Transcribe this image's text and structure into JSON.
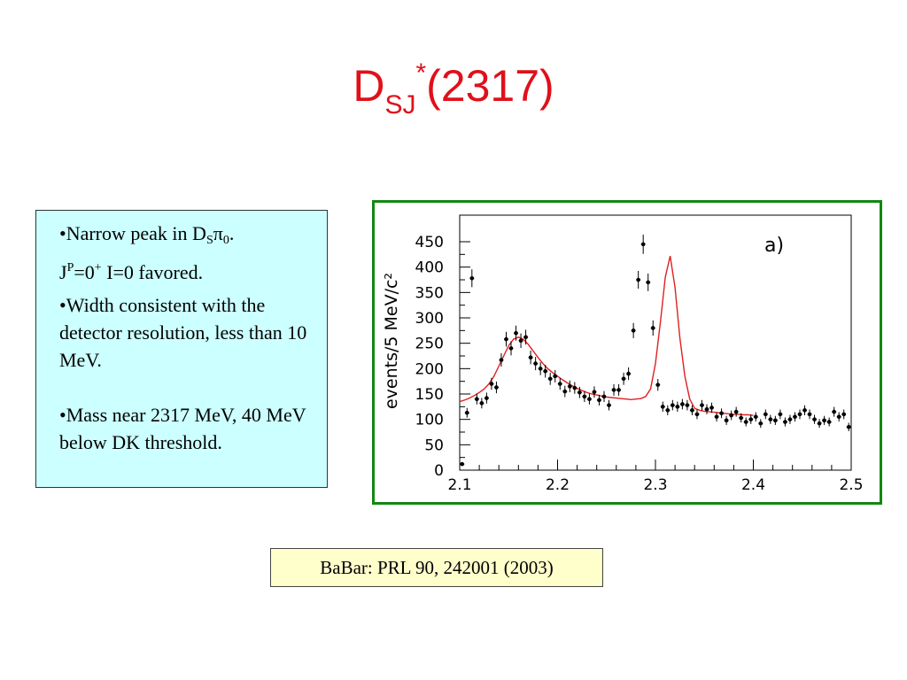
{
  "title": {
    "main": "D",
    "sub": "SJ",
    "sup": "*",
    "rest": "(2317)"
  },
  "bullets": {
    "b1_l1_pre": "•Narrow peak in D",
    "b1_l1_sub1": "S",
    "b1_l1_pi": "π",
    "b1_l1_sub2": "0",
    "b1_l1_end": ".",
    "b1_l2_j": "J",
    "b1_l2_p": "P",
    "b1_l2_eq": "=0",
    "b1_l2_plus": "+",
    "b1_l2_rest": " I=0 favored.",
    "b2": "•Width consistent with the detector resolution, less than 10 MeV.",
    "b3": "•Mass near 2317 MeV, 40 MeV below DK threshold."
  },
  "citation": "BaBar: PRL 90, 242001 (2003)",
  "colors": {
    "title": "#e0101a",
    "bullet_bg": "#ccffff",
    "chart_frame": "#118811",
    "fit_line": "#e02020",
    "citation_bg": "#ffffcc"
  },
  "chart_data": {
    "type": "scatter",
    "ylabel": "events/5 MeV/c²",
    "xlabel": "",
    "panel_label": "a)",
    "xlim": [
      2.1,
      2.5
    ],
    "ylim": [
      0,
      450
    ],
    "xticks": [
      {
        "v": 2.1,
        "label": "2.1"
      },
      {
        "v": 2.2,
        "label": "2.2"
      },
      {
        "v": 2.3,
        "label": "2.3"
      },
      {
        "v": 2.4,
        "label": "2.4"
      },
      {
        "v": 2.5,
        "label": "2.5"
      }
    ],
    "yticks": [
      {
        "v": 0,
        "label": "0"
      },
      {
        "v": 50,
        "label": "50"
      },
      {
        "v": 100,
        "label": "100"
      },
      {
        "v": 150,
        "label": "150"
      },
      {
        "v": 200,
        "label": "200"
      },
      {
        "v": 250,
        "label": "250"
      },
      {
        "v": 300,
        "label": "300"
      },
      {
        "v": 350,
        "label": "350"
      },
      {
        "v": 400,
        "label": "400"
      },
      {
        "v": 450,
        "label": "450"
      }
    ],
    "grid": false,
    "points": {
      "x": [
        2.1025,
        2.1075,
        2.1125,
        2.1175,
        2.1225,
        2.1275,
        2.1325,
        2.1375,
        2.1425,
        2.1475,
        2.1525,
        2.1575,
        2.1625,
        2.1675,
        2.1725,
        2.1775,
        2.1825,
        2.1875,
        2.1925,
        2.1975,
        2.2025,
        2.2075,
        2.2125,
        2.2175,
        2.2225,
        2.2275,
        2.2325,
        2.2375,
        2.2425,
        2.2475,
        2.2525,
        2.2575,
        2.2625,
        2.2675,
        2.2725,
        2.2775,
        2.2825,
        2.2875,
        2.2925,
        2.2975,
        2.3025,
        2.3075,
        2.3125,
        2.3175,
        2.3225,
        2.3275,
        2.3325,
        2.3375,
        2.3425,
        2.3475,
        2.3525,
        2.3575,
        2.3625,
        2.3675,
        2.3725,
        2.3775,
        2.3825,
        2.3875,
        2.3925,
        2.3975,
        2.4025,
        2.4075,
        2.4125,
        2.4175,
        2.4225,
        2.4275,
        2.4325,
        2.4375,
        2.4425,
        2.4475,
        2.4525,
        2.4575,
        2.4625,
        2.4675,
        2.4725,
        2.4775,
        2.4825,
        2.4875,
        2.4925,
        2.4975
      ],
      "y": [
        12,
        113,
        378,
        140,
        132,
        142,
        170,
        163,
        217,
        258,
        240,
        270,
        255,
        262,
        222,
        210,
        200,
        195,
        180,
        185,
        170,
        155,
        165,
        162,
        153,
        145,
        140,
        154,
        138,
        145,
        128,
        158,
        158,
        180,
        190,
        275,
        375,
        445,
        370,
        280,
        168,
        125,
        118,
        128,
        125,
        130,
        128,
        118,
        110,
        128,
        120,
        123,
        105,
        112,
        98,
        108,
        115,
        103,
        95,
        100,
        105,
        92,
        110,
        100,
        98,
        110,
        95,
        100,
        105,
        110,
        118,
        110,
        100,
        92,
        98,
        95,
        115,
        105,
        110,
        85
      ]
    },
    "fit": {
      "x": [
        2.1,
        2.105,
        2.11,
        2.115,
        2.12,
        2.125,
        2.13,
        2.135,
        2.14,
        2.145,
        2.15,
        2.155,
        2.16,
        2.165,
        2.17,
        2.175,
        2.18,
        2.185,
        2.19,
        2.195,
        2.2,
        2.205,
        2.21,
        2.215,
        2.22,
        2.225,
        2.23,
        2.235,
        2.24,
        2.245,
        2.25,
        2.255,
        2.26,
        2.265,
        2.27,
        2.275,
        2.28,
        2.285,
        2.29,
        2.295,
        2.3,
        2.305,
        2.31,
        2.315,
        2.32,
        2.325,
        2.33,
        2.335,
        2.34,
        2.345,
        2.35,
        2.355,
        2.36,
        2.365,
        2.37,
        2.375,
        2.38,
        2.385,
        2.39,
        2.395,
        2.4
      ],
      "y": [
        135,
        138,
        142,
        147,
        153,
        160,
        170,
        185,
        205,
        225,
        245,
        258,
        262,
        258,
        248,
        235,
        222,
        210,
        200,
        192,
        185,
        178,
        172,
        166,
        161,
        157,
        153,
        150,
        148,
        146,
        144,
        143,
        142,
        141,
        140,
        139,
        140,
        141,
        145,
        160,
        210,
        290,
        380,
        422,
        360,
        260,
        185,
        140,
        122,
        118,
        116,
        115,
        114,
        113,
        112,
        111,
        110,
        110,
        109,
        109,
        108
      ]
    }
  }
}
